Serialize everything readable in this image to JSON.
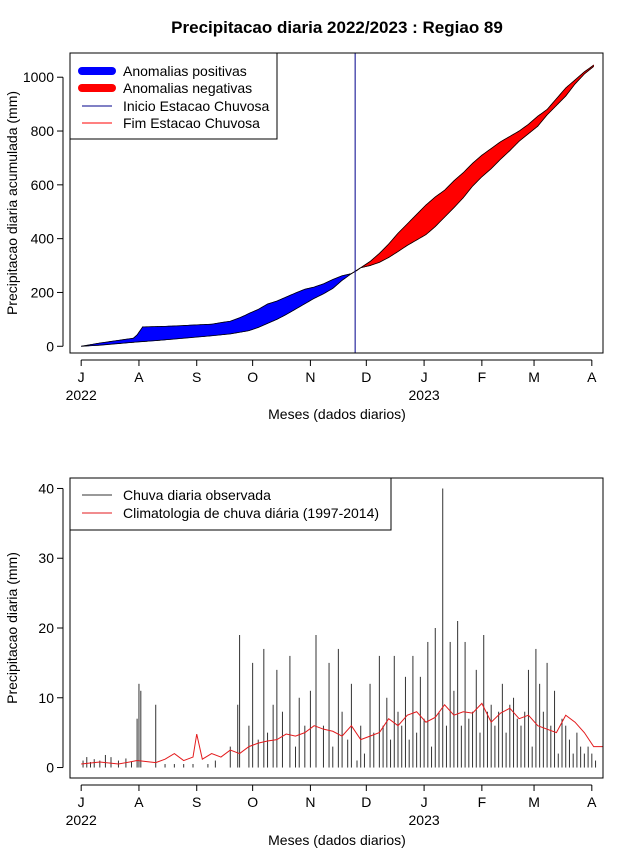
{
  "figure": {
    "title": "Precipitacao diaria 2022/2023 : Regiao 89"
  },
  "chart_data": [
    {
      "type": "area",
      "title": "Precipitacao diaria 2022/2023 : Regiao 89",
      "xlabel": "Meses (dados diarios)",
      "ylabel": "Precipitacao diaria acumulada (mm)",
      "x_unit": "days since 1 July 2022",
      "xlim": [
        -6,
        280
      ],
      "ylim": [
        -25,
        1090
      ],
      "y_ticks": [
        0,
        200,
        400,
        600,
        800,
        1000
      ],
      "month_ticks": [
        {
          "day": 0,
          "label": "J"
        },
        {
          "day": 31,
          "label": "A"
        },
        {
          "day": 62,
          "label": "S"
        },
        {
          "day": 92,
          "label": "O"
        },
        {
          "day": 123,
          "label": "N"
        },
        {
          "day": 153,
          "label": "D"
        },
        {
          "day": 184,
          "label": "J"
        },
        {
          "day": 215,
          "label": "F"
        },
        {
          "day": 243,
          "label": "M"
        },
        {
          "day": 274,
          "label": "A"
        }
      ],
      "year_labels": [
        {
          "day": 0,
          "label": "2022"
        },
        {
          "day": 184,
          "label": "2023"
        }
      ],
      "rainy_season_start_day": 147,
      "legend": {
        "position": "top-left",
        "entries": [
          {
            "label": "Anomalias positivas",
            "color": "#0000ff",
            "style": "thick"
          },
          {
            "label": "Anomalias negativas",
            "color": "#ff0000",
            "style": "thick"
          },
          {
            "label": "Inicio Estacao Chuvosa",
            "color": "#00008b",
            "style": "line"
          },
          {
            "label": "Fim Estacao Chuvosa",
            "color": "#ff0000",
            "style": "line"
          }
        ]
      },
      "series": [
        {
          "name": "observado",
          "x": [
            0,
            10,
            20,
            28,
            30,
            33,
            45,
            55,
            60,
            70,
            75,
            80,
            85,
            88,
            90,
            95,
            100,
            105,
            110,
            115,
            120,
            125,
            130,
            135,
            140,
            145,
            148,
            150,
            155,
            160,
            165,
            170,
            175,
            180,
            185,
            190,
            195,
            200,
            205,
            210,
            215,
            220,
            225,
            230,
            235,
            240,
            245,
            250,
            255,
            260,
            265,
            270,
            275
          ],
          "values": [
            0,
            12,
            22,
            30,
            42,
            72,
            74,
            77,
            79,
            82,
            88,
            93,
            106,
            115,
            122,
            137,
            157,
            168,
            183,
            198,
            212,
            220,
            232,
            248,
            262,
            270,
            282,
            292,
            300,
            312,
            330,
            352,
            375,
            395,
            415,
            445,
            480,
            515,
            552,
            595,
            630,
            660,
            695,
            727,
            762,
            790,
            818,
            860,
            895,
            930,
            975,
            1012,
            1040
          ]
        },
        {
          "name": "climatologia",
          "x": [
            0,
            10,
            20,
            30,
            40,
            50,
            60,
            70,
            80,
            85,
            90,
            95,
            100,
            105,
            110,
            115,
            120,
            125,
            130,
            135,
            140,
            145,
            150,
            155,
            160,
            165,
            170,
            175,
            180,
            185,
            190,
            195,
            200,
            205,
            210,
            215,
            220,
            225,
            230,
            235,
            240,
            245,
            250,
            255,
            260,
            265,
            270,
            275
          ],
          "values": [
            0,
            4,
            10,
            16,
            21,
            27,
            33,
            39,
            46,
            52,
            58,
            70,
            85,
            100,
            118,
            138,
            158,
            178,
            195,
            215,
            245,
            270,
            292,
            315,
            345,
            380,
            420,
            455,
            490,
            525,
            555,
            580,
            615,
            645,
            680,
            710,
            735,
            760,
            780,
            800,
            825,
            855,
            880,
            920,
            960,
            990,
            1020,
            1045
          ]
        }
      ]
    },
    {
      "type": "bar",
      "xlabel": "Meses (dados diarios)",
      "ylabel": "Precipitacao diaria (mm)",
      "x_unit": "days since 1 July 2022",
      "xlim": [
        -6,
        280
      ],
      "ylim": [
        -1.5,
        41.5
      ],
      "y_ticks": [
        0,
        10,
        20,
        30,
        40
      ],
      "month_ticks": [
        {
          "day": 0,
          "label": "J"
        },
        {
          "day": 31,
          "label": "A"
        },
        {
          "day": 62,
          "label": "S"
        },
        {
          "day": 92,
          "label": "O"
        },
        {
          "day": 123,
          "label": "N"
        },
        {
          "day": 153,
          "label": "D"
        },
        {
          "day": 184,
          "label": "J"
        },
        {
          "day": 215,
          "label": "F"
        },
        {
          "day": 243,
          "label": "M"
        },
        {
          "day": 274,
          "label": "A"
        }
      ],
      "year_labels": [
        {
          "day": 0,
          "label": "2022"
        },
        {
          "day": 184,
          "label": "2023"
        }
      ],
      "legend": {
        "position": "top-left",
        "entries": [
          {
            "label": "Chuva diaria observada",
            "color": "#333333",
            "style": "line"
          },
          {
            "label": "Climatologia de chuva diária (1997-2014)",
            "color": "#e31a1c",
            "style": "line"
          }
        ]
      },
      "series": [
        {
          "name": "Chuva diaria observada",
          "color": "#333333",
          "x": [
            1,
            3,
            5,
            7,
            10,
            13,
            16,
            20,
            24,
            27,
            30,
            31,
            32,
            40,
            45,
            50,
            55,
            60,
            68,
            72,
            80,
            84,
            85,
            90,
            92,
            95,
            98,
            100,
            103,
            105,
            108,
            112,
            115,
            117,
            120,
            123,
            126,
            130,
            133,
            135,
            138,
            140,
            143,
            145,
            148,
            150,
            152,
            155,
            157,
            160,
            162,
            164,
            166,
            168,
            170,
            172,
            174,
            176,
            178,
            180,
            182,
            184,
            186,
            188,
            190,
            192,
            194,
            196,
            198,
            200,
            202,
            204,
            206,
            208,
            210,
            212,
            214,
            216,
            218,
            220,
            222,
            224,
            226,
            228,
            230,
            232,
            234,
            236,
            238,
            240,
            242,
            244,
            246,
            248,
            250,
            252,
            254,
            256,
            258,
            260,
            262,
            264,
            266,
            268,
            270,
            272,
            274,
            276
          ],
          "values": [
            1,
            1.5,
            0.8,
            1.2,
            1,
            1.8,
            1.5,
            1,
            1.3,
            0.8,
            7,
            12,
            11,
            9,
            0.5,
            0.5,
            0.5,
            0.5,
            0.5,
            1,
            3,
            9,
            19,
            6,
            15,
            4,
            17,
            5,
            9,
            14,
            8,
            16,
            3,
            10,
            6,
            11,
            19,
            6,
            15,
            3,
            17,
            8,
            4,
            12,
            1,
            6,
            2,
            12,
            5,
            16,
            6,
            10,
            4,
            16,
            8,
            6,
            13,
            4,
            16,
            5,
            13,
            7,
            18,
            3,
            20,
            8,
            40,
            6,
            18,
            11,
            21,
            6,
            18,
            7,
            8,
            14,
            5,
            19,
            8,
            9,
            6,
            8,
            12,
            5,
            9,
            10,
            7,
            6,
            8,
            14,
            3,
            17,
            12,
            8,
            15,
            6,
            11,
            2,
            7,
            6,
            4,
            2,
            5,
            3,
            2,
            3,
            2,
            1
          ]
        },
        {
          "name": "Climatologia de chuva diária (1997-2014)",
          "color": "#e31a1c",
          "x": [
            0,
            10,
            20,
            30,
            40,
            45,
            50,
            55,
            60,
            62,
            65,
            70,
            75,
            80,
            85,
            90,
            95,
            100,
            105,
            110,
            115,
            120,
            125,
            130,
            135,
            140,
            145,
            150,
            155,
            160,
            165,
            170,
            175,
            180,
            185,
            190,
            195,
            200,
            205,
            210,
            215,
            220,
            225,
            230,
            235,
            240,
            245,
            250,
            255,
            260,
            265,
            270,
            275,
            280
          ],
          "values": [
            0.5,
            0.8,
            0.5,
            1,
            0.7,
            1.2,
            2,
            1,
            1.5,
            4.8,
            1.2,
            2,
            1.5,
            2.5,
            2,
            3,
            3.5,
            3.8,
            4,
            4.8,
            4.5,
            5,
            6,
            5.5,
            5.2,
            4.5,
            6,
            4,
            4.5,
            5,
            7,
            6,
            7.5,
            8,
            6.5,
            7.2,
            9,
            7.5,
            8,
            7.8,
            9.2,
            6.5,
            7.8,
            8.5,
            7,
            7.5,
            6,
            5.5,
            5,
            7.5,
            6.5,
            5,
            3,
            3
          ]
        }
      ]
    }
  ]
}
